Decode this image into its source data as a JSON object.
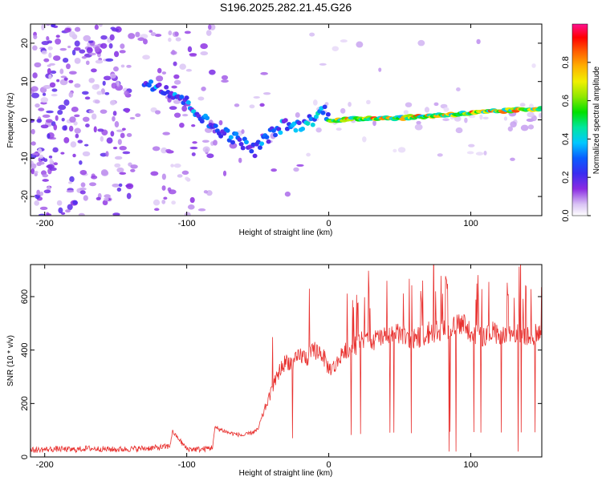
{
  "title": "S196.2025.282.21.45.G26",
  "chart_data": [
    {
      "type": "heatmap",
      "name": "spectrogram",
      "xlabel": "Height of straight line (km)",
      "ylabel": "Frequency (Hz)",
      "xlim": [
        -210,
        150
      ],
      "ylim": [
        -25,
        25
      ],
      "xticks": [
        -200,
        -100,
        0,
        100
      ],
      "yticks": [
        -20,
        -10,
        0,
        10,
        20
      ],
      "colorbar": {
        "label": "Normalized spectral amplitude",
        "range": [
          0.0,
          1.0
        ],
        "ticks": [
          0.0,
          0.2,
          0.4,
          0.6,
          0.8
        ]
      },
      "ridge": {
        "x": [
          -130,
          -120,
          -105,
          -95,
          -88,
          -80,
          -70,
          -60,
          -52,
          -45,
          -38,
          -30,
          -25,
          -18,
          -12,
          -8,
          -3,
          0,
          10,
          30,
          50,
          70,
          90,
          110,
          130,
          150
        ],
        "y": [
          10,
          9,
          6,
          3,
          0,
          -2,
          -4,
          -6,
          -8,
          -5,
          -3,
          -1,
          -2,
          -1,
          0,
          1,
          3,
          0,
          0,
          0.5,
          0.5,
          1,
          1.5,
          2,
          2.5,
          3
        ]
      }
    },
    {
      "type": "line",
      "name": "snr",
      "xlabel": "Height of straight line (km)",
      "ylabel": "SNR (10 * v/v)",
      "xlim": [
        -210,
        150
      ],
      "ylim": [
        0,
        720
      ],
      "xticks": [
        -200,
        -100,
        0,
        100
      ],
      "yticks": [
        0,
        200,
        400,
        600
      ],
      "series": [
        {
          "name": "SNR",
          "color": "#e8312f",
          "x": [
            -210,
            -200,
            -190,
            -180,
            -170,
            -160,
            -150,
            -140,
            -130,
            -120,
            -112,
            -110,
            -100,
            -90,
            -82,
            -80,
            -70,
            -60,
            -50,
            -45,
            -40,
            -35,
            -30,
            -25,
            -20,
            -15,
            -10,
            -5,
            0,
            5,
            10,
            15,
            20,
            25,
            30,
            35,
            40,
            45,
            50,
            55,
            60,
            65,
            70,
            75,
            80,
            85,
            90,
            95,
            100,
            105,
            110,
            115,
            120,
            125,
            130,
            135,
            140,
            145,
            150
          ],
          "y": [
            25,
            28,
            30,
            27,
            32,
            30,
            28,
            30,
            32,
            35,
            40,
            95,
            30,
            28,
            35,
            110,
            90,
            80,
            100,
            180,
            250,
            320,
            360,
            350,
            380,
            370,
            400,
            390,
            330,
            340,
            400,
            410,
            420,
            440,
            430,
            445,
            450,
            455,
            460,
            450,
            440,
            450,
            465,
            470,
            480,
            470,
            490,
            500,
            470,
            460,
            450,
            470,
            460,
            450,
            455,
            460,
            455,
            460,
            470
          ]
        }
      ]
    }
  ]
}
